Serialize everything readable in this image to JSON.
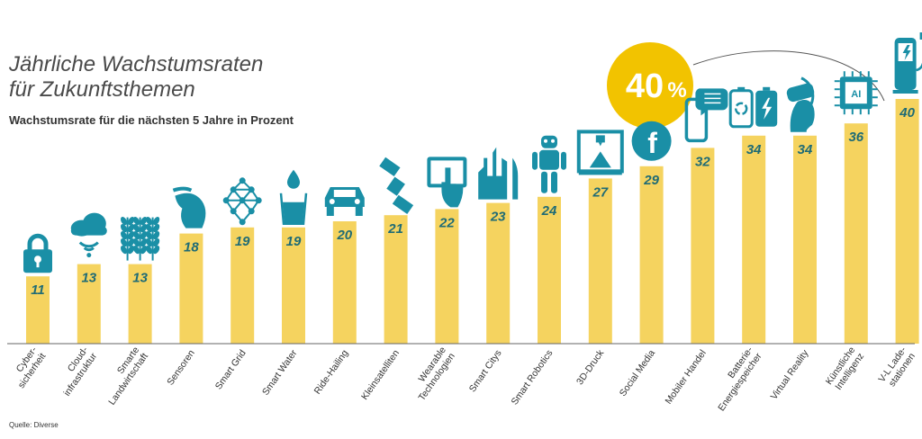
{
  "title_line1": "Jährliche Wachstumsraten",
  "title_line2": "für Zukunftsthemen",
  "subtitle": "Wachstumsrate für die nächsten 5 Jahre in Prozent",
  "source": "Quelle: Diverse",
  "highlight": {
    "value": "40",
    "unit": "%"
  },
  "colors": {
    "bar": "#f5d35f",
    "icon": "#1a8fa6",
    "value_text": "#1f6b75",
    "highlight": "#f2c300",
    "axis": "#666666"
  },
  "chart_data": {
    "type": "bar",
    "categories": [
      "Cyber-\nsicherheit",
      "Cloud-\ninfrastruktur",
      "Smarte\nLandwirtschaft",
      "Sensoren",
      "Smart Grid",
      "Smart Water",
      "Ride-Hailing",
      "Kleinsatelliten",
      "Wearable\nTechnologien",
      "Smart Citys",
      "Smart Robotics",
      "3D-Druck",
      "Social Media",
      "Mobiler Handel",
      "Batterie-\nEnergiespeicher",
      "Virtual Reality",
      "Künstliche\nIntelligenz",
      "V-L Lade-\nstationen"
    ],
    "values": [
      11,
      13,
      13,
      18,
      19,
      19,
      20,
      21,
      22,
      23,
      24,
      27,
      29,
      32,
      34,
      34,
      36,
      40
    ],
    "icons": [
      "padlock-icon",
      "cloud-wifi-icon",
      "wheat-icon",
      "hand-icon",
      "grid-network-icon",
      "water-glass-icon",
      "car-icon",
      "satellite-icon",
      "tablet-touch-icon",
      "city-icon",
      "robot-icon",
      "3d-printer-icon",
      "facebook-icon",
      "mobile-chat-icon",
      "battery-recycle-icon",
      "vr-headset-icon",
      "ai-chip-icon",
      "ev-charger-icon"
    ],
    "title": "Jährliche Wachstumsraten für Zukunftsthemen",
    "ylabel": "",
    "ylim": [
      0,
      40
    ],
    "grid": false
  }
}
